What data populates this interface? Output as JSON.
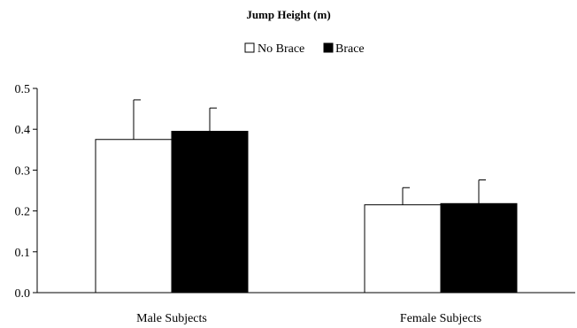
{
  "chart_data": {
    "type": "bar",
    "title": "Jump Height (m)",
    "xlabel": "",
    "ylabel": "",
    "categories": [
      "Male Subjects",
      "Female Subjects"
    ],
    "series": [
      {
        "name": "No Brace",
        "values": [
          0.375,
          0.215
        ],
        "error": [
          0.097,
          0.042
        ],
        "color": "#ffffff"
      },
      {
        "name": "Brace",
        "values": [
          0.395,
          0.218
        ],
        "error": [
          0.057,
          0.058
        ],
        "color": "#000000"
      }
    ],
    "ylim": [
      0,
      0.5
    ],
    "yticks": [
      "0.0",
      "0.1",
      "0.2",
      "0.3",
      "0.4",
      "0.5"
    ],
    "grid": false,
    "legend_position": "top-center",
    "error_bars": "upper"
  }
}
